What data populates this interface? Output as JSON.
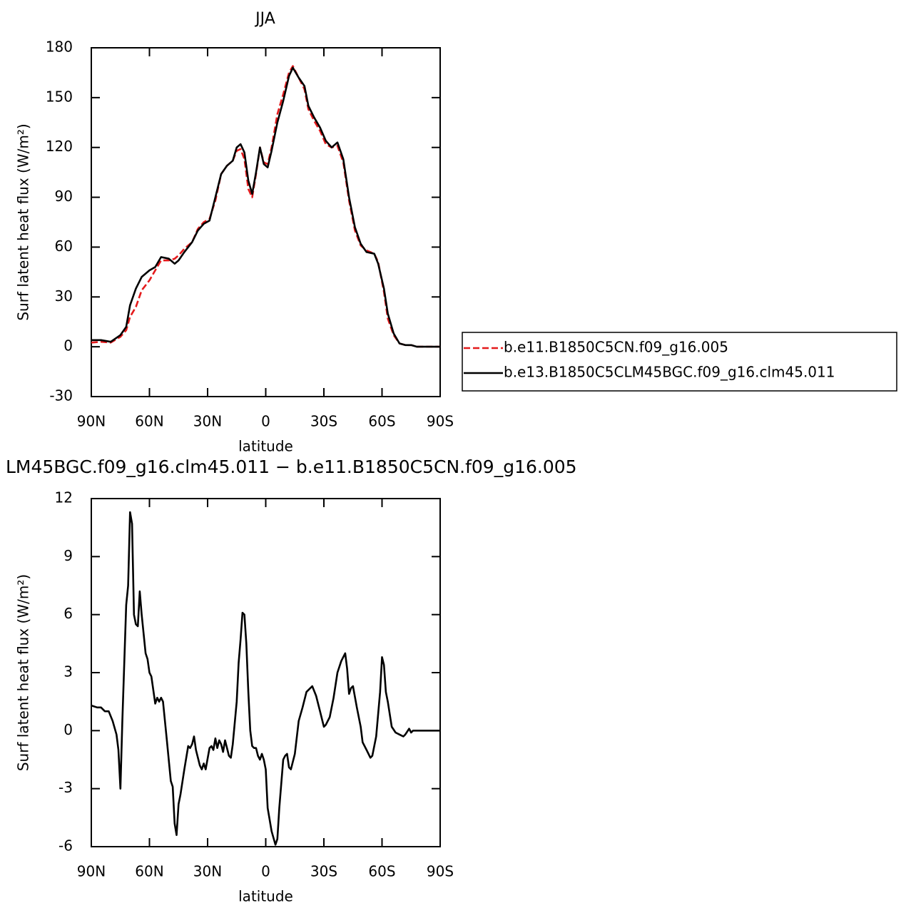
{
  "chart_data": [
    {
      "type": "line",
      "title": "JJA",
      "x_label": "latitude",
      "y_label": "Surf latent heat flux (W/m²)",
      "xlim": [
        90,
        -90
      ],
      "ylim": [
        -30,
        180
      ],
      "xticks": [
        {
          "value": 90,
          "label": "90N"
        },
        {
          "value": 60,
          "label": "60N"
        },
        {
          "value": 30,
          "label": "30N"
        },
        0,
        {
          "value": -30,
          "label": "30S"
        },
        {
          "value": -60,
          "label": "60S"
        },
        {
          "value": -90,
          "label": "90S"
        }
      ],
      "yticks": [
        -30,
        0,
        30,
        60,
        90,
        120,
        150,
        180
      ],
      "legend": "right",
      "x": [
        90,
        85,
        80,
        75,
        72,
        70,
        67,
        64,
        60,
        57,
        54,
        50,
        47,
        45,
        42,
        38,
        35,
        32,
        29,
        26,
        23,
        20,
        17,
        15,
        13,
        11,
        9,
        7,
        5,
        3,
        1,
        -1,
        -3,
        -6,
        -9,
        -12,
        -14,
        -17,
        -20,
        -22,
        -25,
        -28,
        -31,
        -34,
        -37,
        -40,
        -43,
        -46,
        -49,
        -52,
        -56,
        -58,
        -61,
        -63,
        -66,
        -69,
        -72,
        -75,
        -78,
        -80,
        -85,
        -90
      ],
      "series": [
        {
          "name": "b.e11.B1850C5CN.f09_g16.005",
          "color": "#e41a1c",
          "dash": true,
          "values": [
            2.5,
            3,
            2.5,
            6,
            10,
            18,
            24,
            34,
            40,
            46,
            52,
            52,
            53,
            55,
            59,
            63,
            71,
            75,
            77,
            88,
            104,
            109,
            112,
            118,
            119,
            113,
            95,
            90,
            104,
            120,
            111,
            110,
            120,
            140,
            152,
            165,
            169,
            162,
            155,
            143,
            136,
            130,
            122,
            120,
            121,
            111,
            88,
            70,
            61,
            58,
            56,
            51,
            33,
            17,
            7,
            2,
            1,
            1,
            0,
            0,
            0,
            0
          ]
        },
        {
          "name": "b.e13.B1850C5CLM45BGC.f09_g16.clm45.011",
          "color": "#000000",
          "dash": false,
          "values": [
            4,
            4,
            3,
            7,
            12,
            25,
            35,
            42,
            46,
            48,
            54,
            53,
            50,
            52,
            57,
            63,
            70,
            74,
            76,
            90,
            104,
            109,
            112,
            120,
            122,
            117,
            100,
            92,
            105,
            120,
            110,
            108,
            118,
            135,
            148,
            163,
            168,
            162,
            157,
            145,
            138,
            132,
            124,
            120,
            123,
            113,
            90,
            72,
            62,
            57,
            56,
            50,
            35,
            20,
            8,
            2,
            1,
            1,
            0,
            0,
            0,
            0
          ]
        }
      ]
    },
    {
      "type": "line",
      "title": "LM45BGC.f09_g16.clm45.011 − b.e11.B1850C5CN.f09_g16.005",
      "x_label": "latitude",
      "y_label": "Surf latent heat flux (W/m²)",
      "xlim": [
        90,
        -90
      ],
      "ylim": [
        -6,
        12
      ],
      "xticks": [
        {
          "value": 90,
          "label": "90N"
        },
        {
          "value": 60,
          "label": "60N"
        },
        {
          "value": 30,
          "label": "30N"
        },
        0,
        {
          "value": -30,
          "label": "30S"
        },
        {
          "value": -60,
          "label": "60S"
        },
        {
          "value": -90,
          "label": "90S"
        }
      ],
      "yticks": [
        -6,
        -3,
        0,
        3,
        6,
        9,
        12
      ],
      "x": [
        90,
        87,
        85,
        83,
        81,
        79,
        77,
        76,
        75,
        74,
        72,
        71,
        70,
        69,
        68,
        67,
        66,
        65,
        64,
        62,
        61,
        60,
        59,
        57,
        56,
        55,
        54,
        53,
        51,
        49,
        48,
        47,
        46,
        45,
        44,
        42,
        40,
        39,
        38,
        37,
        36,
        34,
        33,
        32,
        31,
        29,
        28,
        27,
        26,
        25,
        24,
        23,
        22,
        21,
        19,
        18,
        17,
        15,
        14,
        13,
        12,
        11,
        10,
        9,
        8,
        7,
        6,
        5,
        4,
        3,
        2,
        1,
        0,
        -1,
        -3,
        -5,
        -6,
        -7,
        -9,
        -10,
        -11,
        -12,
        -13,
        -15,
        -17,
        -19,
        -21,
        -24,
        -26,
        -28,
        -30,
        -31,
        -33,
        -35,
        -37,
        -39,
        -41,
        -42,
        -43,
        -44,
        -45,
        -47,
        -49,
        -50,
        -52,
        -54,
        -55,
        -57,
        -59,
        -60,
        -61,
        -62,
        -63,
        -65,
        -67,
        -69,
        -71,
        -72,
        -74,
        -75,
        -76,
        -80,
        -85,
        -90
      ],
      "series": [
        {
          "color": "#000000",
          "values": [
            1.3,
            1.2,
            1.2,
            1.0,
            1.0,
            0.5,
            -0.2,
            -1.0,
            -3.0,
            0.5,
            6.5,
            7.5,
            11.3,
            10.7,
            6.0,
            5.5,
            5.4,
            7.2,
            6.0,
            4.0,
            3.7,
            3.0,
            2.8,
            1.4,
            1.7,
            1.5,
            1.7,
            1.5,
            -0.5,
            -2.6,
            -2.9,
            -4.8,
            -5.4,
            -3.8,
            -3.3,
            -2.0,
            -0.8,
            -0.9,
            -0.7,
            -0.3,
            -1.0,
            -1.8,
            -2.0,
            -1.7,
            -2.0,
            -0.9,
            -0.8,
            -1.0,
            -0.4,
            -0.9,
            -0.5,
            -0.7,
            -1.1,
            -0.5,
            -1.3,
            -1.4,
            -0.7,
            1.5,
            3.5,
            4.7,
            6.1,
            6.0,
            4.5,
            2.0,
            0.0,
            -0.8,
            -0.9,
            -0.9,
            -1.3,
            -1.5,
            -1.2,
            -1.5,
            -2.0,
            -4.0,
            -5.2,
            -5.9,
            -5.6,
            -4.0,
            -1.5,
            -1.3,
            -1.2,
            -1.9,
            -2.0,
            -1.2,
            0.5,
            1.2,
            2.0,
            2.3,
            1.8,
            1.0,
            0.2,
            0.3,
            0.7,
            1.7,
            3.0,
            3.6,
            4.0,
            3.2,
            1.9,
            2.2,
            2.3,
            1.2,
            0.2,
            -0.6,
            -1.0,
            -1.4,
            -1.3,
            -0.3,
            2.0,
            3.8,
            3.4,
            2.0,
            1.5,
            0.2,
            -0.1,
            -0.2,
            -0.3,
            -0.2,
            0.1,
            -0.1,
            0.0,
            0.0,
            0.0,
            0.0
          ]
        }
      ]
    }
  ]
}
